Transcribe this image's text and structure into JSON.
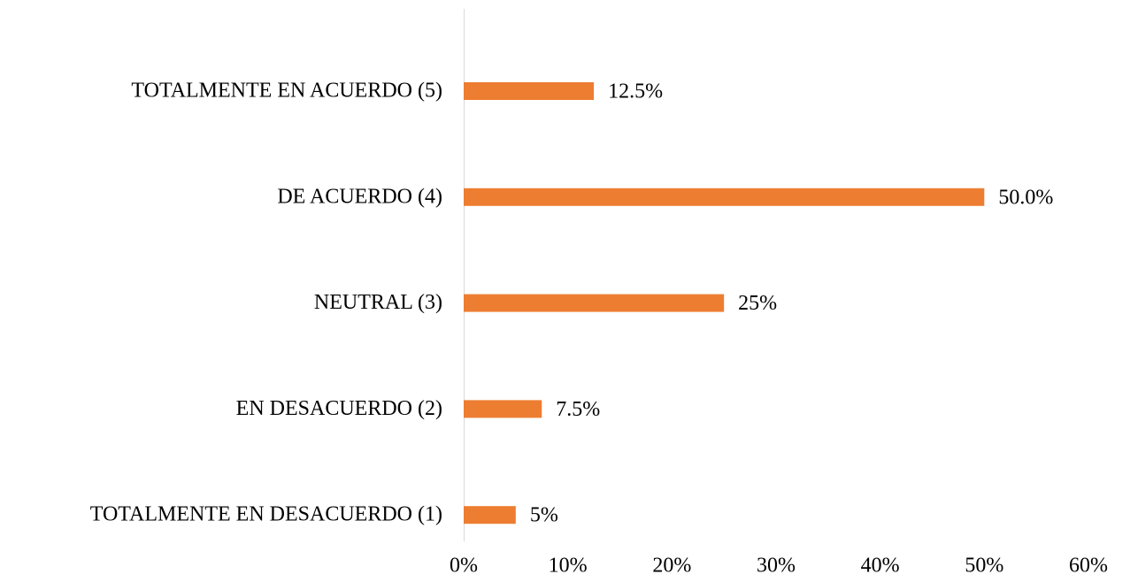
{
  "chart_data": {
    "type": "hbar",
    "categories": [
      "TOTALMENTE EN ACUERDO (5)",
      "DE ACUERDO (4)",
      "NEUTRAL (3)",
      "EN DESACUERDO (2)",
      "TOTALMENTE EN DESACUERDO (1)"
    ],
    "values": [
      12.5,
      50,
      25,
      7.5,
      5
    ],
    "value_labels": [
      "12.5%",
      "50.0%",
      "25%",
      "7.5%",
      "5%"
    ],
    "color": "#ed7d31",
    "xlim": [
      0,
      60
    ],
    "xticks": [
      {
        "value": 0,
        "label": "0%"
      },
      {
        "value": 10,
        "label": "10%"
      },
      {
        "value": 20,
        "label": "20%"
      },
      {
        "value": 30,
        "label": "30%"
      },
      {
        "value": 40,
        "label": "40%"
      },
      {
        "value": 50,
        "label": "50%"
      },
      {
        "value": 60,
        "label": "60%"
      }
    ],
    "grid": false
  }
}
